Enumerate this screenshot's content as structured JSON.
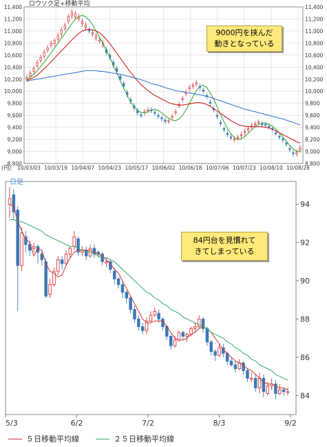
{
  "colors": {
    "candle_up": "#d83b3b",
    "candle_down": "#3d78b8",
    "ma_red": "#cc2222",
    "ma_green": "#3aaa3a",
    "ma_blue": "#3a7acc",
    "ma5": "#cc3333",
    "ma25": "#33aa66",
    "axis": "#555555",
    "grid": "#d8d8d8"
  },
  "chart_data": [
    {
      "type": "line",
      "title": "ロウソク足+移動平均",
      "y_unit": "(円)",
      "grid": true,
      "ylim": [
        8800,
        11400
      ],
      "y_ticks": [
        8800,
        9000,
        9200,
        9400,
        9600,
        9800,
        10000,
        10200,
        10400,
        10600,
        10800,
        11000,
        11200,
        11400
      ],
      "y_tick_labels": [
        "8,800",
        "9,000",
        "9,200",
        "9,400",
        "9,600",
        "9,800",
        "10,000",
        "10,200",
        "10,400",
        "10,600",
        "10,800",
        "11,000",
        "11,200",
        "11,400"
      ],
      "x_tick_labels": [
        "10/03/03",
        "10/03/19",
        "10/04/07",
        "10/04/23",
        "10/05/17",
        "10/06/02",
        "10/06/18",
        "10/07/06",
        "10/07/23",
        "10/08/10",
        "10/08/26"
      ],
      "annotation": [
        "9000円を挟んだ",
        "動きとなっている"
      ],
      "candles": [
        [
          10200,
          10230
        ],
        [
          10250,
          10300
        ],
        [
          10330,
          10380
        ],
        [
          10420,
          10480
        ],
        [
          10510,
          10560
        ],
        [
          10580,
          10650
        ],
        [
          10680,
          10720
        ],
        [
          10760,
          10800
        ],
        [
          10790,
          10840
        ],
        [
          10860,
          10930
        ],
        [
          10950,
          11020
        ],
        [
          11040,
          11100
        ],
        [
          11160,
          11240
        ],
        [
          11250,
          11310
        ],
        [
          11230,
          11290
        ],
        [
          11200,
          11240
        ],
        [
          11120,
          11160
        ],
        [
          11060,
          11100
        ],
        [
          11020,
          11000
        ],
        [
          10950,
          10970
        ],
        [
          10880,
          10920
        ],
        [
          10830,
          10850
        ],
        [
          10760,
          10800
        ],
        [
          10690,
          10640
        ],
        [
          10600,
          10560
        ],
        [
          10480,
          10430
        ],
        [
          10380,
          10330
        ],
        [
          10250,
          10200
        ],
        [
          10130,
          10080
        ],
        [
          9980,
          9940
        ],
        [
          9860,
          9830
        ],
        [
          9760,
          9720
        ],
        [
          9680,
          9640
        ],
        [
          9610,
          9600
        ],
        [
          9640,
          9660
        ],
        [
          9680,
          9690
        ],
        [
          9690,
          9680
        ],
        [
          9650,
          9640
        ],
        [
          9600,
          9580
        ],
        [
          9560,
          9540
        ],
        [
          9520,
          9500
        ],
        [
          9500,
          9510
        ],
        [
          9560,
          9580
        ],
        [
          9650,
          9660
        ],
        [
          9760,
          9780
        ],
        [
          9860,
          9880
        ],
        [
          9960,
          9980
        ],
        [
          10040,
          10060
        ],
        [
          10080,
          10100
        ],
        [
          10120,
          10140
        ],
        [
          10080,
          10060
        ],
        [
          10020,
          10000
        ],
        [
          9930,
          9910
        ],
        [
          9820,
          9800
        ],
        [
          9710,
          9690
        ],
        [
          9600,
          9580
        ],
        [
          9480,
          9460
        ],
        [
          9380,
          9360
        ],
        [
          9300,
          9280
        ],
        [
          9240,
          9230
        ],
        [
          9200,
          9210
        ],
        [
          9220,
          9240
        ],
        [
          9260,
          9280
        ],
        [
          9310,
          9330
        ],
        [
          9360,
          9380
        ],
        [
          9410,
          9430
        ],
        [
          9450,
          9460
        ],
        [
          9480,
          9490
        ],
        [
          9460,
          9450
        ],
        [
          9450,
          9440
        ],
        [
          9420,
          9410
        ],
        [
          9380,
          9370
        ],
        [
          9310,
          9300
        ],
        [
          9250,
          9240
        ],
        [
          9210,
          9190
        ],
        [
          9140,
          9120
        ],
        [
          9050,
          9030
        ],
        [
          8980,
          8960
        ],
        [
          8960,
          8990
        ],
        [
          9020,
          9060
        ]
      ],
      "series": [
        {
          "name": "",
          "values": [
            10200,
            10230,
            10280,
            10340,
            10410,
            10480,
            10560,
            10640,
            10720,
            10800,
            10880,
            10960,
            11040,
            11120,
            11200,
            11240,
            11260,
            11240,
            11180,
            11100,
            11000,
            10900,
            10790,
            10680,
            10560,
            10430,
            10300,
            10170,
            10050,
            9930,
            9820,
            9740,
            9680,
            9650,
            9640,
            9660,
            9690,
            9700,
            9680,
            9640,
            9590,
            9550,
            9520,
            9510,
            9540,
            9600,
            9690,
            9800,
            9910,
            10010,
            10080,
            10100,
            10060,
            9980,
            9870,
            9740,
            9610,
            9490,
            9380,
            9290,
            9230,
            9200,
            9210,
            9250,
            9300,
            9360,
            9410,
            9450,
            9470,
            9470,
            9450,
            9420,
            9370,
            9310,
            9240,
            9170,
            9100,
            9040,
            9000,
            9000
          ]
        },
        {
          "name": "",
          "values": [
            10180,
            10200,
            10230,
            10270,
            10320,
            10370,
            10430,
            10490,
            10550,
            10610,
            10670,
            10730,
            10790,
            10850,
            10910,
            10960,
            11000,
            11020,
            11030,
            11020,
            11000,
            10970,
            10920,
            10860,
            10790,
            10710,
            10630,
            10550,
            10470,
            10390,
            10310,
            10240,
            10170,
            10110,
            10060,
            10010,
            9970,
            9930,
            9900,
            9870,
            9840,
            9810,
            9790,
            9780,
            9770,
            9770,
            9780,
            9790,
            9800,
            9810,
            9810,
            9800,
            9780,
            9750,
            9710,
            9670,
            9630,
            9590,
            9550,
            9510,
            9480,
            9450,
            9430,
            9420,
            9410,
            9410,
            9410,
            9410,
            9410,
            9400,
            9390,
            9370,
            9340,
            9310,
            9280,
            9250,
            9220,
            9190,
            9160,
            9140
          ]
        },
        {
          "name": "",
          "values": [
            10170,
            10180,
            10190,
            10200,
            10210,
            10220,
            10230,
            10240,
            10250,
            10260,
            10270,
            10280,
            10290,
            10300,
            10310,
            10320,
            10330,
            10340,
            10340,
            10340,
            10340,
            10330,
            10330,
            10320,
            10310,
            10300,
            10290,
            10280,
            10270,
            10250,
            10240,
            10220,
            10210,
            10190,
            10170,
            10150,
            10130,
            10110,
            10100,
            10080,
            10060,
            10040,
            10030,
            10010,
            10000,
            9990,
            9980,
            9970,
            9960,
            9950,
            9940,
            9930,
            9910,
            9900,
            9880,
            9860,
            9840,
            9820,
            9800,
            9780,
            9760,
            9740,
            9720,
            9700,
            9690,
            9670,
            9660,
            9640,
            9630,
            9610,
            9600,
            9580,
            9570,
            9550,
            9540,
            9520,
            9500,
            9480,
            9460,
            9440
          ]
        }
      ]
    },
    {
      "type": "line",
      "title": "日足",
      "grid": false,
      "ylim": [
        83.0,
        95.2
      ],
      "y_ticks": [
        84,
        86,
        88,
        90,
        92,
        94
      ],
      "y_tick_labels": [
        "84",
        "86",
        "88",
        "90",
        "92",
        "94"
      ],
      "x_tick_labels": [
        "5/3",
        "6/2",
        "7/2",
        "8/3",
        "9/2"
      ],
      "annotation": [
        "84円台を見慣れて",
        "きてしまっている"
      ],
      "legend": [
        "５日移動平均線",
        "２５日移動平均線"
      ],
      "candles": [
        [
          94.0,
          94.3,
          93.3,
          94.9
        ],
        [
          94.5,
          93.6,
          93.2,
          94.8
        ],
        [
          93.7,
          90.8,
          88.4,
          93.9
        ],
        [
          90.8,
          92.5,
          90.5,
          92.8
        ],
        [
          92.3,
          91.9,
          91.5,
          92.6
        ],
        [
          91.9,
          91.6,
          91.3,
          92.1
        ],
        [
          91.7,
          91.8,
          91.5,
          92.0
        ],
        [
          91.8,
          91.5,
          90.9,
          91.9
        ],
        [
          91.4,
          91.1,
          90.8,
          91.6
        ],
        [
          91.0,
          89.2,
          89.1,
          91.2
        ],
        [
          89.3,
          89.8,
          89.1,
          90.1
        ],
        [
          89.8,
          90.5,
          89.7,
          90.7
        ],
        [
          90.5,
          91.1,
          90.3,
          91.3
        ],
        [
          91.1,
          90.9,
          90.6,
          91.3
        ],
        [
          90.9,
          91.4,
          90.8,
          91.6
        ],
        [
          91.4,
          91.7,
          91.2,
          91.8
        ],
        [
          91.8,
          92.3,
          91.6,
          92.6
        ],
        [
          92.2,
          91.5,
          91.3,
          92.3
        ],
        [
          91.5,
          91.6,
          91.3,
          91.8
        ],
        [
          91.6,
          91.3,
          91.1,
          91.8
        ],
        [
          91.3,
          91.7,
          91.2,
          91.9
        ],
        [
          91.7,
          91.4,
          91.2,
          91.9
        ],
        [
          91.5,
          91.4,
          91.2,
          91.6
        ],
        [
          91.4,
          91.0,
          90.8,
          91.5
        ],
        [
          91.0,
          91.0,
          90.7,
          91.2
        ],
        [
          91.0,
          90.6,
          90.4,
          91.1
        ],
        [
          90.5,
          90.1,
          89.8,
          90.7
        ],
        [
          90.1,
          89.8,
          89.6,
          90.2
        ],
        [
          89.8,
          89.4,
          89.1,
          90.0
        ],
        [
          89.4,
          89.1,
          88.8,
          89.5
        ],
        [
          89.1,
          88.5,
          88.3,
          89.2
        ],
        [
          88.5,
          88.0,
          87.8,
          88.7
        ],
        [
          88.0,
          87.6,
          87.4,
          88.2
        ],
        [
          87.6,
          87.4,
          87.2,
          87.8
        ],
        [
          87.4,
          87.9,
          87.2,
          88.1
        ],
        [
          87.9,
          88.2,
          87.8,
          88.4
        ],
        [
          88.2,
          88.4,
          88.1,
          88.6
        ],
        [
          88.3,
          88.0,
          87.8,
          88.5
        ],
        [
          88.0,
          87.6,
          87.4,
          88.1
        ],
        [
          87.6,
          87.1,
          86.9,
          87.7
        ],
        [
          87.1,
          86.6,
          86.4,
          87.2
        ],
        [
          86.6,
          86.9,
          86.5,
          87.1
        ],
        [
          86.9,
          87.3,
          86.8,
          87.4
        ],
        [
          87.3,
          87.1,
          86.9,
          87.4
        ],
        [
          87.1,
          87.2,
          86.8,
          87.3
        ],
        [
          87.2,
          87.5,
          87.1,
          87.6
        ],
        [
          87.5,
          87.6,
          87.3,
          87.8
        ],
        [
          87.6,
          88.0,
          87.5,
          88.2
        ],
        [
          88.0,
          87.5,
          87.3,
          88.1
        ],
        [
          87.5,
          86.8,
          86.6,
          87.6
        ],
        [
          86.8,
          86.3,
          86.1,
          86.9
        ],
        [
          86.3,
          86.1,
          85.8,
          86.4
        ],
        [
          86.1,
          86.5,
          86.0,
          86.7
        ],
        [
          86.5,
          86.2,
          86.0,
          86.7
        ],
        [
          86.2,
          85.8,
          85.6,
          86.3
        ],
        [
          85.8,
          85.6,
          85.5,
          86.0
        ],
        [
          85.6,
          85.4,
          85.2,
          85.8
        ],
        [
          85.4,
          85.7,
          85.3,
          85.9
        ],
        [
          85.7,
          85.3,
          85.1,
          85.8
        ],
        [
          85.3,
          84.9,
          84.7,
          85.4
        ],
        [
          84.9,
          84.9,
          84.7,
          85.2
        ],
        [
          84.9,
          84.4,
          84.2,
          85.1
        ],
        [
          84.4,
          84.9,
          84.1,
          85.2
        ],
        [
          84.9,
          84.2,
          83.9,
          85.1
        ],
        [
          84.1,
          84.5,
          84.0,
          84.7
        ],
        [
          84.5,
          84.6,
          84.3,
          84.9
        ],
        [
          84.6,
          84.1,
          83.8,
          84.8
        ],
        [
          84.1,
          84.3,
          84.0,
          84.6
        ],
        [
          84.3,
          84.2,
          84.0,
          84.4
        ],
        [
          84.2,
          84.2,
          84.0,
          84.4
        ]
      ],
      "series": [
        {
          "name": "５日移動平均線",
          "values": [
            94.0,
            93.9,
            93.1,
            92.6,
            92.2,
            92.0,
            91.3,
            91.7,
            91.6,
            90.9,
            90.5,
            90.4,
            90.2,
            90.3,
            90.8,
            91.2,
            91.5,
            91.6,
            91.6,
            91.6,
            91.6,
            91.5,
            91.4,
            91.3,
            91.1,
            90.9,
            90.6,
            90.4,
            90.0,
            89.6,
            89.2,
            88.8,
            88.4,
            88.0,
            87.8,
            87.8,
            87.9,
            87.9,
            87.9,
            87.6,
            87.3,
            87.0,
            86.9,
            86.9,
            87.0,
            87.2,
            87.3,
            87.5,
            87.6,
            87.5,
            87.3,
            87.0,
            86.7,
            86.4,
            86.2,
            86.0,
            85.8,
            85.7,
            85.6,
            85.4,
            85.3,
            85.1,
            84.9,
            84.7,
            84.6,
            84.6,
            84.5,
            84.4,
            84.4,
            84.3
          ]
        },
        {
          "name": "２５日移動平均線",
          "values": [
            93.2,
            93.2,
            93.1,
            93.1,
            93.0,
            92.9,
            92.8,
            92.7,
            92.6,
            92.4,
            92.3,
            92.2,
            92.1,
            92.0,
            91.9,
            91.8,
            91.8,
            91.7,
            91.6,
            91.5,
            91.5,
            91.4,
            91.3,
            91.2,
            91.2,
            91.1,
            91.0,
            90.8,
            90.6,
            90.4,
            90.2,
            90.0,
            89.8,
            89.6,
            89.4,
            89.3,
            89.1,
            89.0,
            88.8,
            88.7,
            88.5,
            88.4,
            88.3,
            88.1,
            88.0,
            87.9,
            87.8,
            87.7,
            87.6,
            87.5,
            87.3,
            87.2,
            87.1,
            87.0,
            86.8,
            86.7,
            86.5,
            86.4,
            86.2,
            86.1,
            85.9,
            85.8,
            85.6,
            85.5,
            85.4,
            85.3,
            85.1,
            85.0,
            84.9,
            84.8
          ]
        }
      ]
    }
  ]
}
